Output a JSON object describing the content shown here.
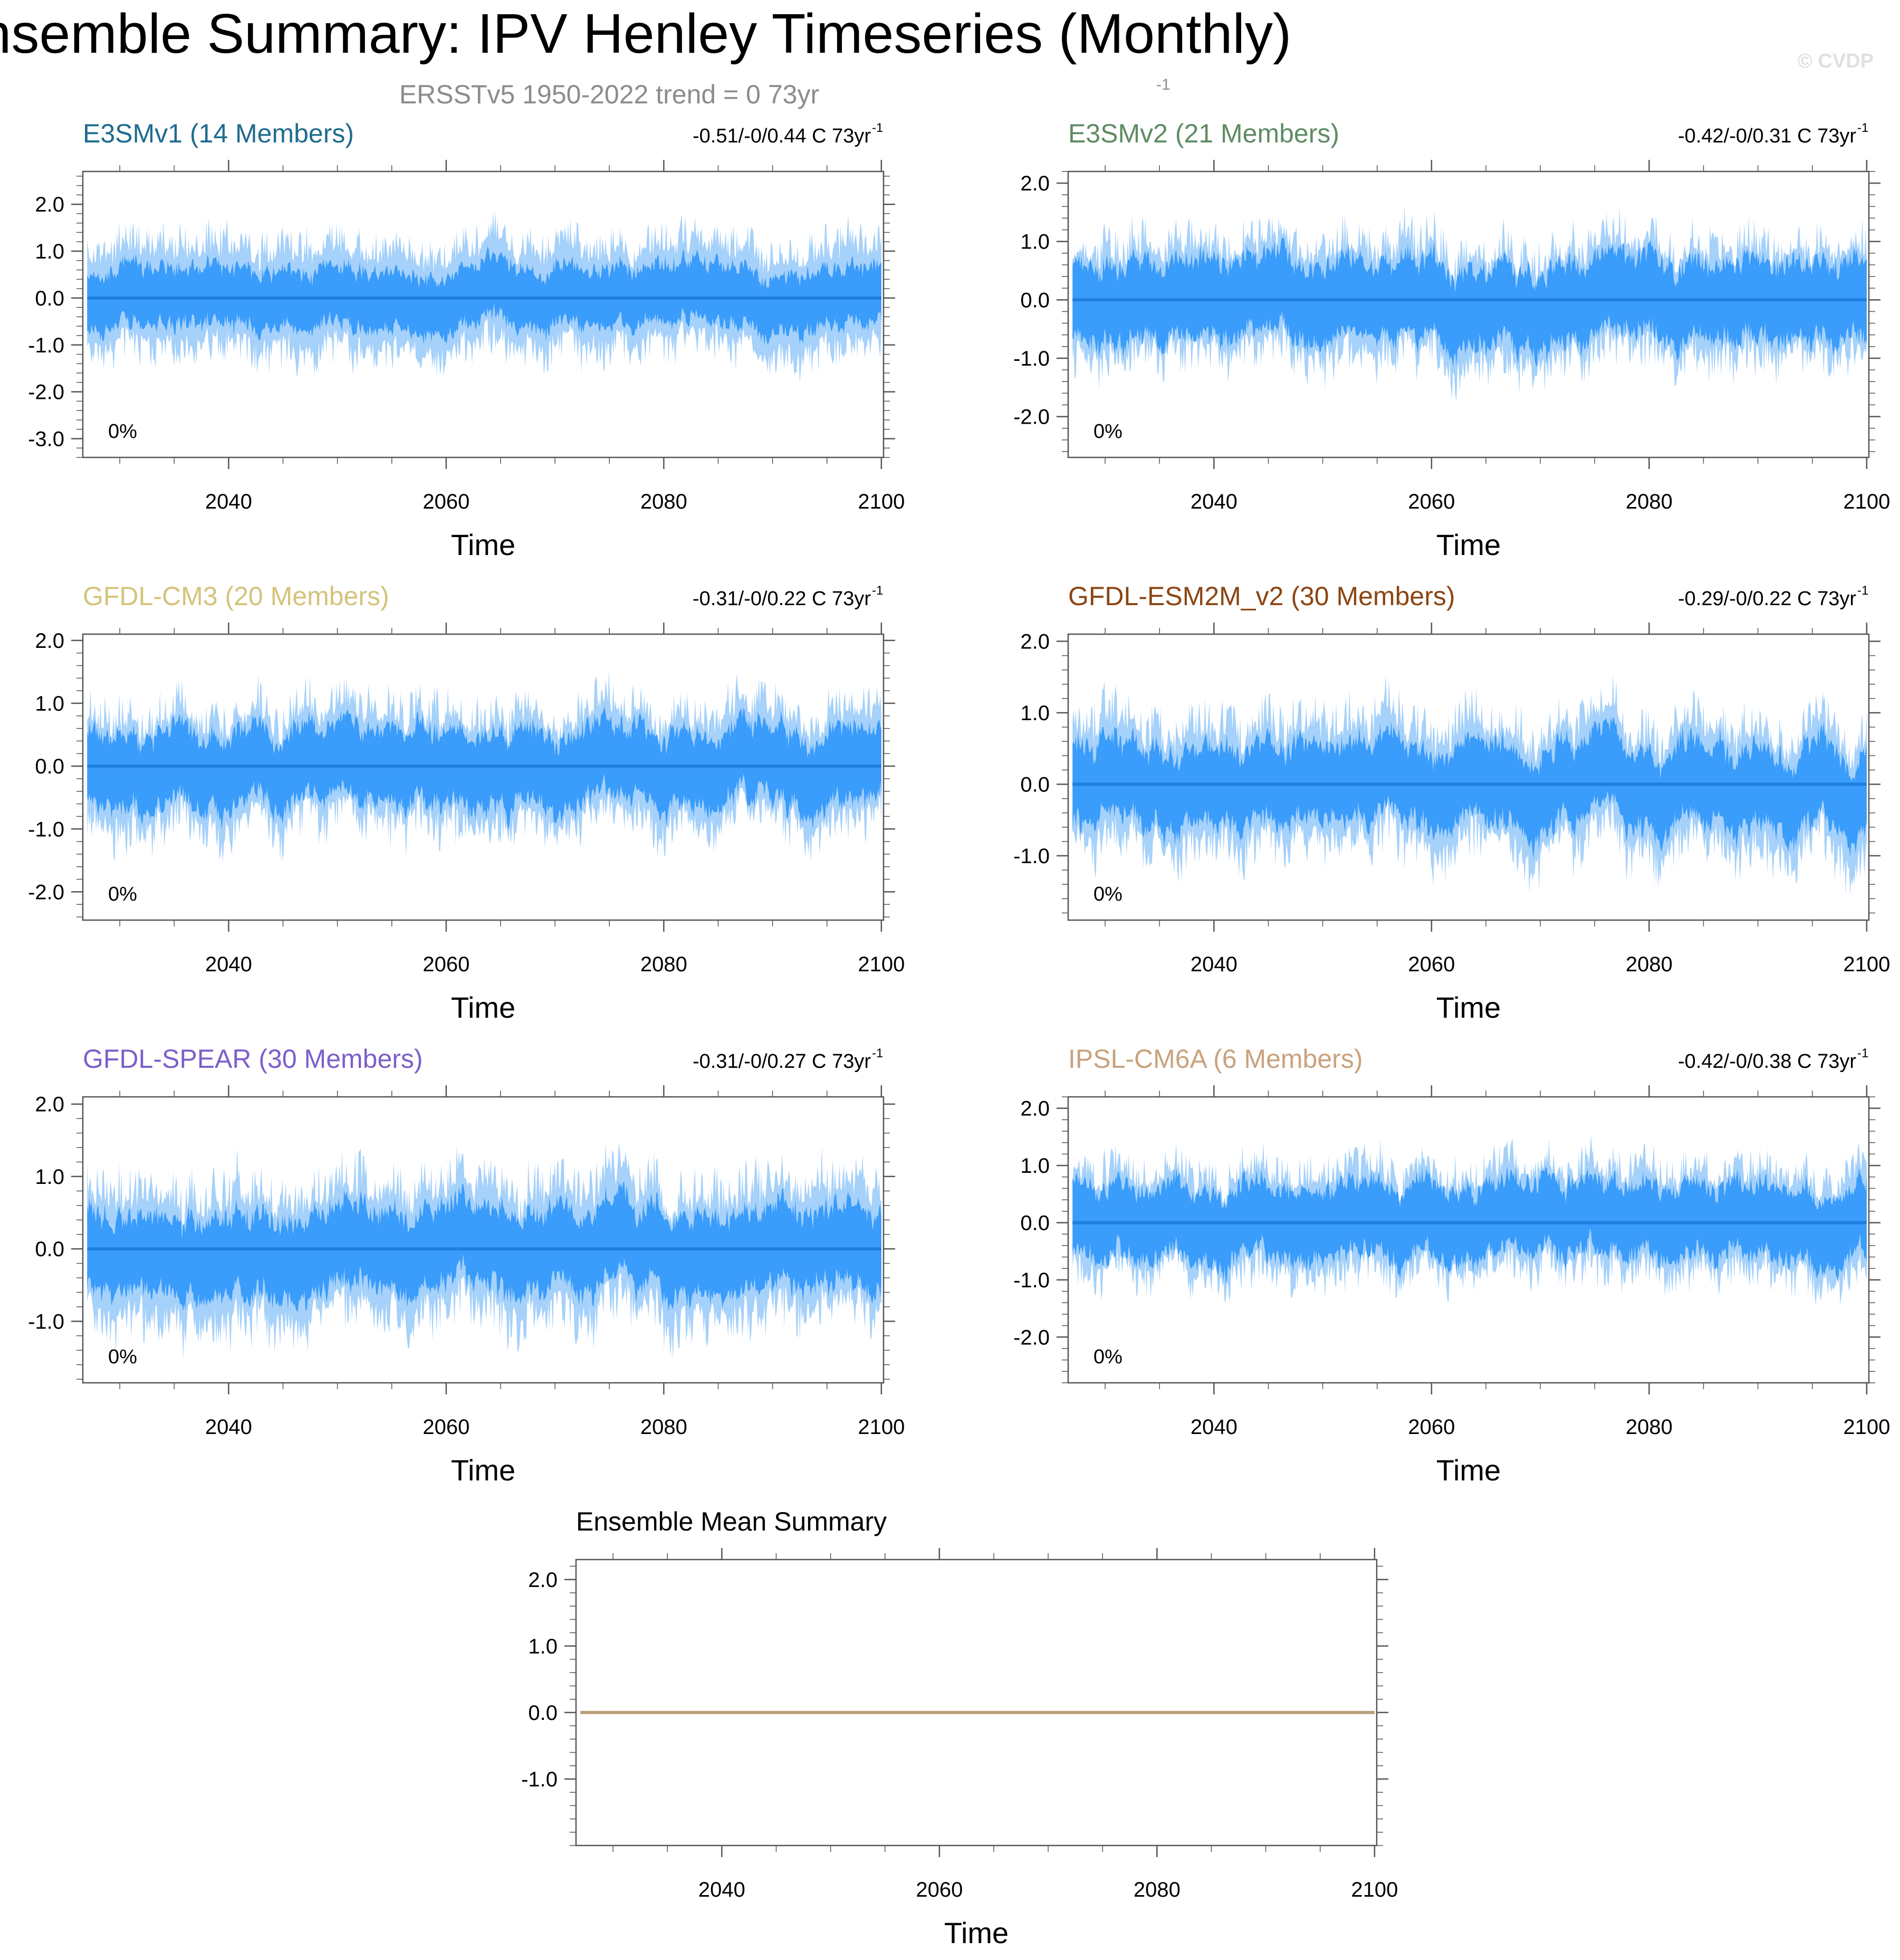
{
  "title": "Ensemble Summary: IPV Henley Timeseries (Monthly)",
  "subtitle": "ERSSTv5 1950-2022 trend = 0 73yr",
  "subtitle_sup": "-1",
  "watermark": "© CVDP",
  "colors": {
    "outer_band": "#a5d1fa",
    "inner_band": "#3a9cfb",
    "mean_line": "#1f7fe0",
    "ens_mean_line": "#bb9d78",
    "axis": "#555555",
    "subtitle": "#8c8c8c",
    "watermark": "#e0e0e0"
  },
  "xaxis": {
    "label": "Time",
    "ticks": [
      2040,
      2060,
      2080,
      2100
    ],
    "range": [
      2026.6,
      2100.2
    ]
  },
  "chart_data": [
    {
      "type": "area",
      "model": "E3SMv1 (14 Members)",
      "title_color": "#1f6b8f",
      "trend": "-0.51/-0/0.44 C 73yr",
      "trend_sup": "-1",
      "pct": "0%",
      "members": 14,
      "ylim": [
        -3.4,
        2.7
      ],
      "yticks": [
        "2.0",
        "1.0",
        "0.0",
        "-1.0",
        "-2.0",
        "-3.0"
      ],
      "ytick_values": [
        2,
        1,
        0,
        -1,
        -2,
        -3
      ],
      "outer_amplitude": 1.55,
      "inner_amplitude": 0.75,
      "series": [
        {
          "name": "mean",
          "x": [
            2026.6,
            2100.2
          ],
          "values": [
            0,
            0
          ]
        }
      ]
    },
    {
      "type": "area",
      "model": "E3SMv2 (21 Members)",
      "title_color": "#5f8b64",
      "trend": "-0.42/-0/0.31 C 73yr",
      "trend_sup": "-1",
      "pct": "0%",
      "members": 21,
      "ylim": [
        -2.7,
        2.2
      ],
      "yticks": [
        "2.0",
        "1.0",
        "0.0",
        "-1.0",
        "-2.0"
      ],
      "ytick_values": [
        2,
        1,
        0,
        -1,
        -2
      ],
      "outer_amplitude": 1.35,
      "inner_amplitude": 0.8,
      "series": [
        {
          "name": "mean",
          "x": [
            2026.6,
            2100.2
          ],
          "values": [
            0,
            0
          ]
        }
      ]
    },
    {
      "type": "area",
      "model": "GFDL-CM3 (20 Members)",
      "title_color": "#d4c37a",
      "trend": "-0.31/-0/0.22 C 73yr",
      "trend_sup": "-1",
      "pct": "0%",
      "members": 20,
      "ylim": [
        -2.45,
        2.1
      ],
      "yticks": [
        "2.0",
        "1.0",
        "0.0",
        "-1.0",
        "-2.0"
      ],
      "ytick_values": [
        2,
        1,
        0,
        -1,
        -2
      ],
      "outer_amplitude": 1.25,
      "inner_amplitude": 0.7,
      "series": [
        {
          "name": "mean",
          "x": [
            2026.6,
            2100.2
          ],
          "values": [
            0,
            0
          ]
        }
      ]
    },
    {
      "type": "area",
      "model": "GFDL-ESM2M_v2 (30 Members)",
      "title_color": "#8b4513",
      "trend": "-0.29/-0/0.22 C 73yr",
      "trend_sup": "-1",
      "pct": "0%",
      "members": 30,
      "ylim": [
        -1.9,
        2.1
      ],
      "yticks": [
        "2.0",
        "1.0",
        "0.0",
        "-1.0"
      ],
      "ytick_values": [
        2,
        1,
        0,
        -1
      ],
      "outer_amplitude": 1.2,
      "inner_amplitude": 0.65,
      "series": [
        {
          "name": "mean",
          "x": [
            2026.6,
            2100.2
          ],
          "values": [
            0,
            0
          ]
        }
      ]
    },
    {
      "type": "area",
      "model": "GFDL-SPEAR (30 Members)",
      "title_color": "#7c5fc8",
      "trend": "-0.31/-0/0.27 C 73yr",
      "trend_sup": "-1",
      "pct": "0%",
      "members": 30,
      "ylim": [
        -1.85,
        2.1
      ],
      "yticks": [
        "2.0",
        "1.0",
        "0.0",
        "-1.0"
      ],
      "ytick_values": [
        2,
        1,
        0,
        -1
      ],
      "outer_amplitude": 1.25,
      "inner_amplitude": 0.65,
      "series": [
        {
          "name": "mean",
          "x": [
            2026.6,
            2100.2
          ],
          "values": [
            0,
            0
          ]
        }
      ]
    },
    {
      "type": "area",
      "model": "IPSL-CM6A (6 Members)",
      "title_color": "#c9a27e",
      "trend": "-0.42/-0/0.38 C 73yr",
      "trend_sup": "-1",
      "pct": "0%",
      "members": 6,
      "ylim": [
        -2.8,
        2.2
      ],
      "yticks": [
        "2.0",
        "1.0",
        "0.0",
        "-1.0",
        "-2.0"
      ],
      "ytick_values": [
        2,
        1,
        0,
        -1,
        -2
      ],
      "outer_amplitude": 1.25,
      "inner_amplitude": 0.75,
      "series": [
        {
          "name": "mean",
          "x": [
            2026.6,
            2100.2
          ],
          "values": [
            0,
            0
          ]
        }
      ]
    },
    {
      "type": "line",
      "model": "Ensemble Mean Summary",
      "title_color": "#000000",
      "ylim": [
        -2.0,
        2.3
      ],
      "yticks": [
        "2.0",
        "1.0",
        "0.0",
        "-1.0"
      ],
      "ytick_values": [
        2,
        1,
        0,
        -1
      ],
      "series": [
        {
          "name": "ensemble mean",
          "x": [
            2026.6,
            2100.2
          ],
          "values": [
            0,
            0
          ]
        }
      ]
    }
  ]
}
